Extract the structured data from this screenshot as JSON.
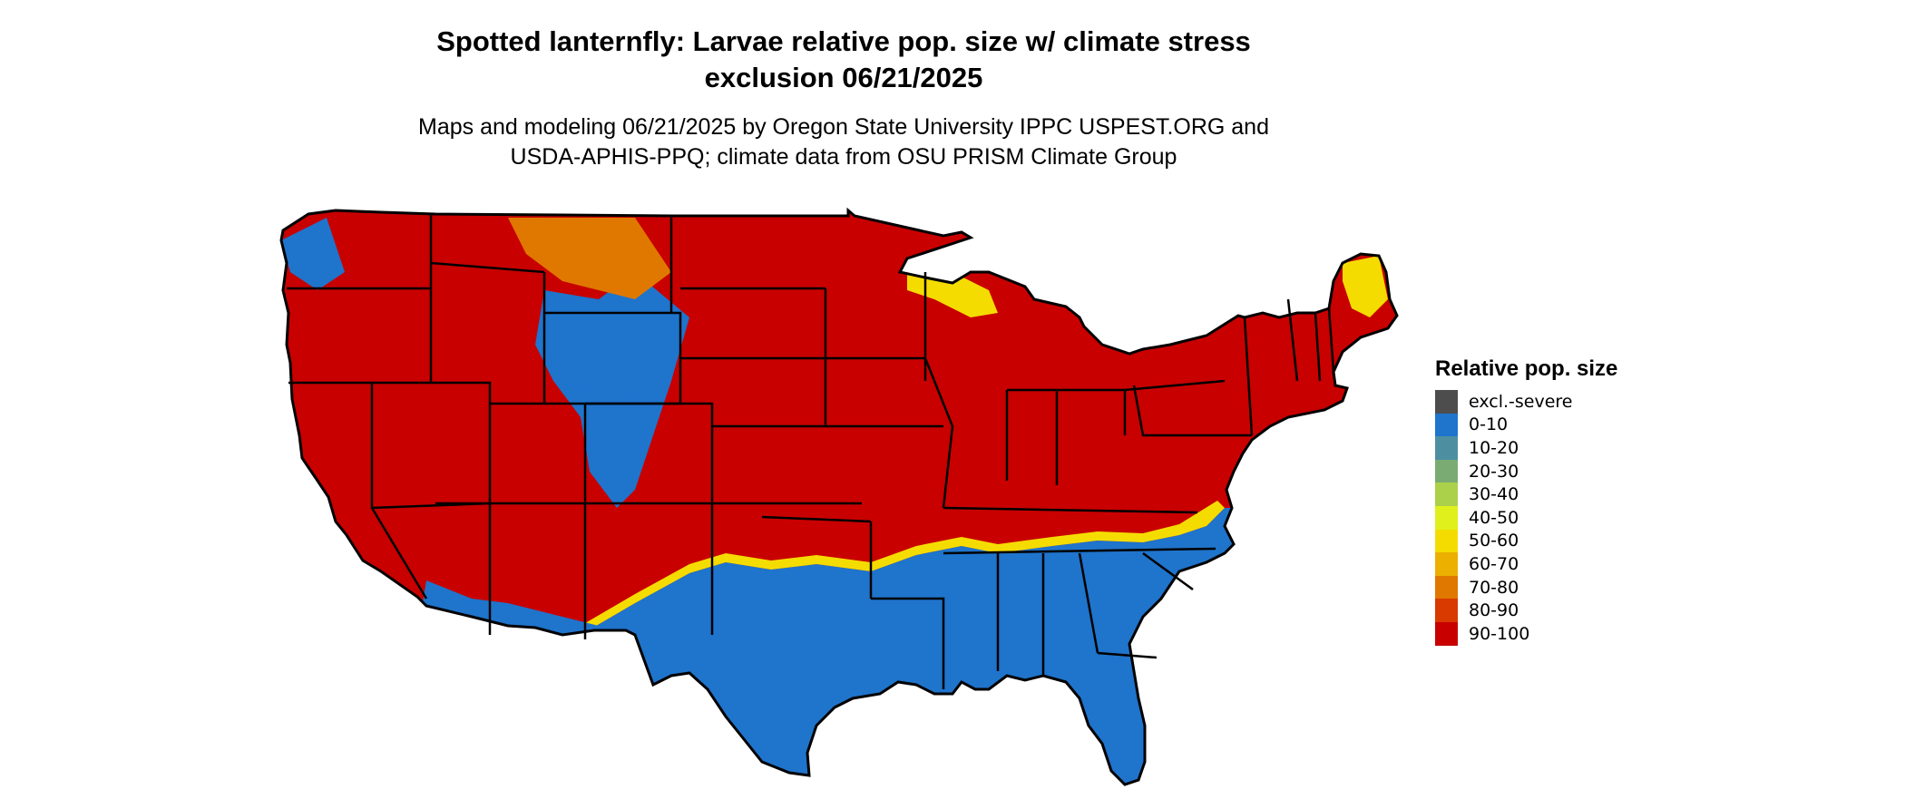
{
  "title": {
    "line1": "Spotted lanternfly: Larvae relative pop. size w/ climate stress",
    "line2": "exclusion 06/21/2025"
  },
  "subtitle": {
    "line1": "Maps and modeling 06/21/2025 by Oregon State University IPPC USPEST.ORG and",
    "line2": "USDA-APHIS-PPQ; climate data from OSU PRISM Climate Group"
  },
  "legend": {
    "title": "Relative pop. size",
    "items": [
      {
        "label": "excl.-severe",
        "color": "#4d4d4d"
      },
      {
        "label": "0-10",
        "color": "#1f74cc"
      },
      {
        "label": "10-20",
        "color": "#4d8fa0"
      },
      {
        "label": "20-30",
        "color": "#7aab72"
      },
      {
        "label": "30-40",
        "color": "#abd04a"
      },
      {
        "label": "40-50",
        "color": "#dff01c"
      },
      {
        "label": "50-60",
        "color": "#f5dc00"
      },
      {
        "label": "60-70",
        "color": "#ebb000"
      },
      {
        "label": "70-80",
        "color": "#e07800"
      },
      {
        "label": "80-90",
        "color": "#d83a00"
      },
      {
        "label": "90-100",
        "color": "#c80000"
      }
    ]
  },
  "map": {
    "colors": {
      "high": "#c80000",
      "low": "#1f74cc",
      "transition": "#f5dc00",
      "orange": "#e07800",
      "borders": "#000000"
    }
  }
}
